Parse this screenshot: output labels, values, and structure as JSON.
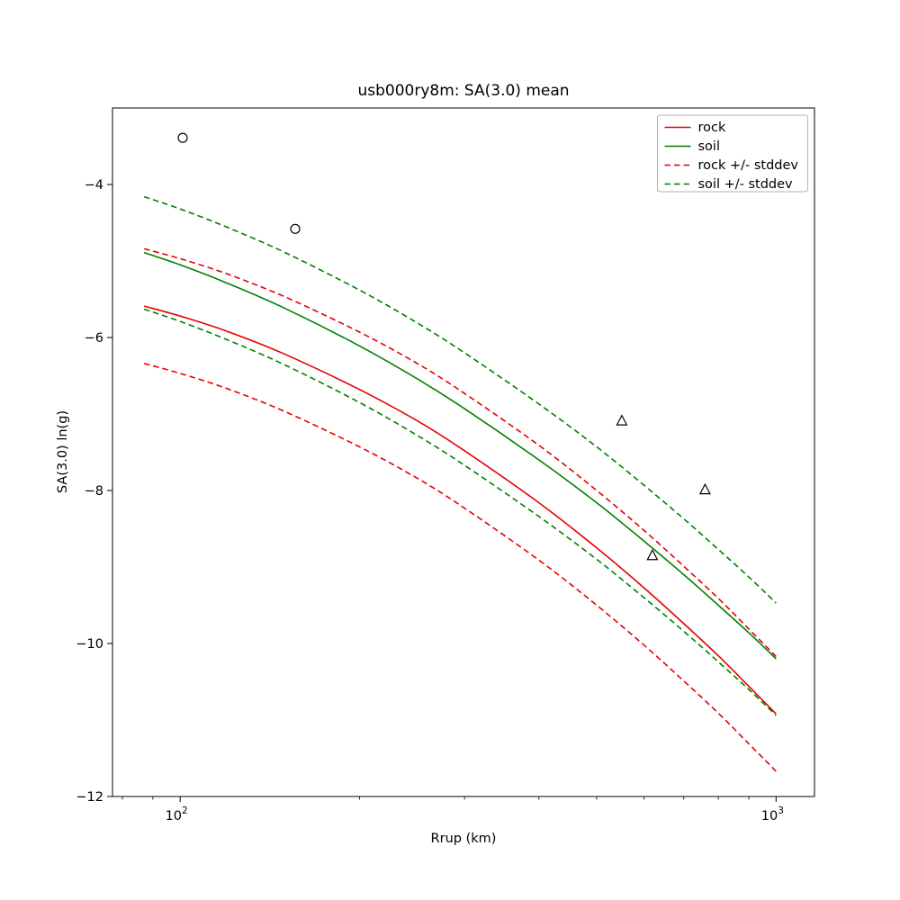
{
  "figure": {
    "title": "usb000ry8m: SA(3.0) mean",
    "xlabel": "Rrup (km)",
    "ylabel": "SA(3.0) ln(g)"
  },
  "chart_data": {
    "type": "line",
    "title": "usb000ry8m: SA(3.0) mean",
    "xlabel": "Rrup (km)",
    "ylabel": "SA(3.0) ln(g)",
    "x_scale": "log",
    "grid": false,
    "xlim": [
      77,
      1160
    ],
    "ylim": [
      -12,
      -3
    ],
    "x_major_ticks": [
      {
        "value": 100,
        "mantissa": "10",
        "exponent": "2"
      },
      {
        "value": 1000,
        "mantissa": "10",
        "exponent": "3"
      }
    ],
    "x_minor_ticks": [
      80,
      90,
      200,
      300,
      400,
      500,
      600,
      700,
      800,
      900
    ],
    "y_ticks": [
      {
        "value": -12,
        "label": "−12"
      },
      {
        "value": -10,
        "label": "−10"
      },
      {
        "value": -8,
        "label": "−8"
      },
      {
        "value": -6,
        "label": "−6"
      },
      {
        "value": -4,
        "label": "−4"
      }
    ],
    "x": [
      87,
      100,
      120,
      150,
      200,
      250,
      300,
      400,
      500,
      600,
      700,
      800,
      900,
      1000
    ],
    "series": [
      {
        "name": "rock",
        "label": "rock",
        "color": "#e60000",
        "style": "solid",
        "values": [
          -5.59,
          -5.72,
          -5.92,
          -6.22,
          -6.68,
          -7.09,
          -7.48,
          -8.16,
          -8.75,
          -9.27,
          -9.74,
          -10.16,
          -10.56,
          -10.92
        ]
      },
      {
        "name": "soil",
        "label": "soil",
        "color": "#008000",
        "style": "solid",
        "values": [
          -4.89,
          -5.05,
          -5.29,
          -5.62,
          -6.11,
          -6.54,
          -6.93,
          -7.6,
          -8.16,
          -8.66,
          -9.1,
          -9.5,
          -9.86,
          -10.2
        ]
      },
      {
        "name": "rock-plus-stddev",
        "label": "rock + stddev",
        "color": "#e60000",
        "style": "dashed",
        "values": [
          -4.84,
          -4.97,
          -5.17,
          -5.47,
          -5.93,
          -6.34,
          -6.73,
          -7.41,
          -8.0,
          -8.52,
          -8.99,
          -9.41,
          -9.81,
          -10.17
        ]
      },
      {
        "name": "rock-minus-stddev",
        "label": "rock - stddev",
        "color": "#e60000",
        "style": "dashed",
        "values": [
          -6.34,
          -6.47,
          -6.67,
          -6.97,
          -7.43,
          -7.84,
          -8.23,
          -8.91,
          -9.5,
          -10.02,
          -10.49,
          -10.91,
          -11.31,
          -11.67
        ]
      },
      {
        "name": "soil-plus-stddev",
        "label": "soil + stddev",
        "color": "#008000",
        "style": "dashed",
        "values": [
          -4.16,
          -4.32,
          -4.56,
          -4.89,
          -5.38,
          -5.81,
          -6.2,
          -6.87,
          -7.43,
          -7.93,
          -8.37,
          -8.77,
          -9.13,
          -9.47
        ]
      },
      {
        "name": "soil-minus-stddev",
        "label": "soil - stddev",
        "color": "#008000",
        "style": "dashed",
        "values": [
          -5.63,
          -5.79,
          -6.03,
          -6.36,
          -6.85,
          -7.28,
          -7.67,
          -8.34,
          -8.9,
          -9.4,
          -9.84,
          -10.24,
          -10.6,
          -10.94
        ]
      }
    ],
    "scatter": [
      {
        "name": "circle-markers",
        "marker": "circle",
        "color": "#000000",
        "points": [
          [
            101,
            -3.39
          ],
          [
            156,
            -4.58
          ]
        ]
      },
      {
        "name": "triangle-markers",
        "marker": "triangle",
        "color": "#000000",
        "points": [
          [
            551,
            -7.09
          ],
          [
            760,
            -7.99
          ],
          [
            620,
            -8.85
          ]
        ]
      }
    ],
    "legend": {
      "position": "upper right",
      "entries": [
        {
          "label": "rock",
          "color": "#e60000",
          "style": "solid"
        },
        {
          "label": "soil",
          "color": "#008000",
          "style": "solid"
        },
        {
          "label": "rock +/- stddev",
          "color": "#e60000",
          "style": "dashed"
        },
        {
          "label": "soil +/- stddev",
          "color": "#008000",
          "style": "dashed"
        }
      ]
    }
  }
}
